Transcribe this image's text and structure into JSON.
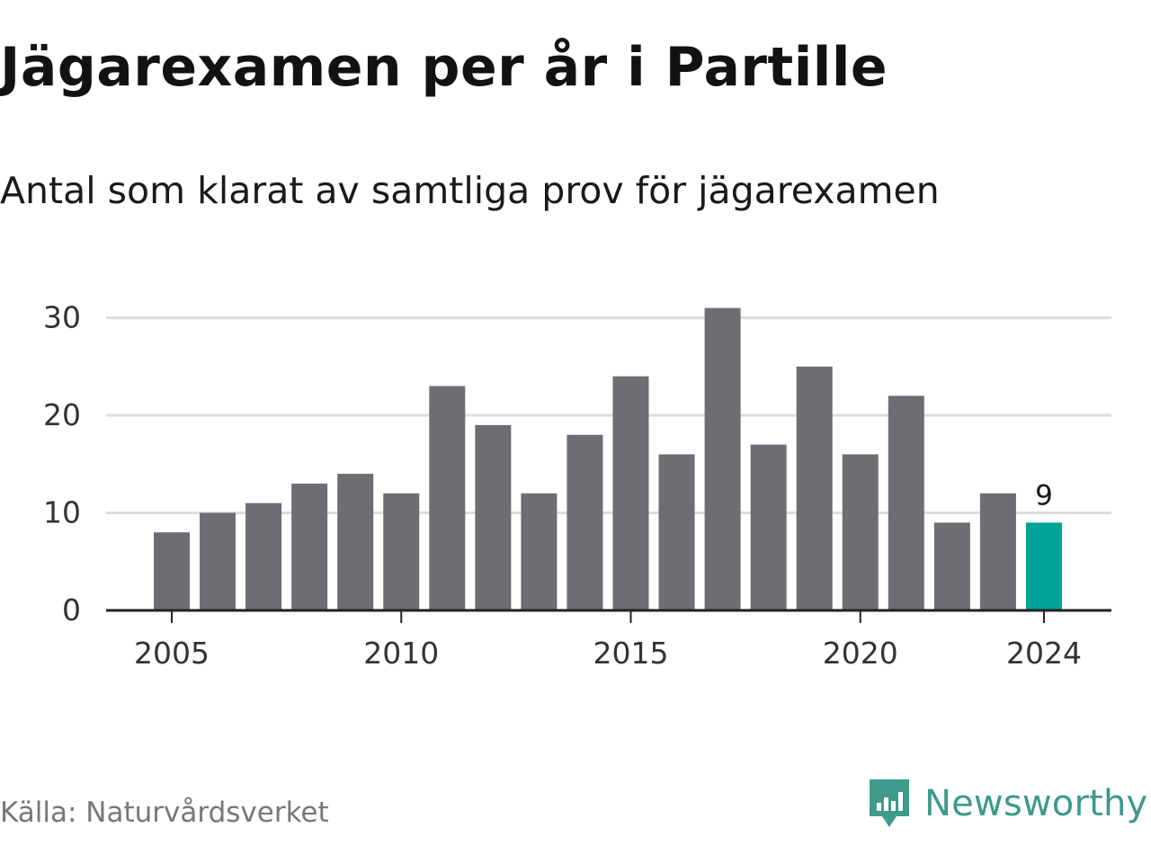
{
  "title": "Jägarexamen per år i Partille",
  "subtitle": "Antal som klarat av samtliga prov för jägarexamen",
  "source": "Källa: Naturvårdsverket",
  "brand": {
    "name": "Newsworthy",
    "icon": "newsworthy-logo-icon",
    "color": "#3d9a8c"
  },
  "chart_data": {
    "type": "bar",
    "categories": [
      2005,
      2006,
      2007,
      2008,
      2009,
      2010,
      2011,
      2012,
      2013,
      2014,
      2015,
      2016,
      2017,
      2018,
      2019,
      2020,
      2021,
      2022,
      2023,
      2024
    ],
    "values": [
      8,
      10,
      11,
      13,
      14,
      12,
      23,
      19,
      12,
      18,
      24,
      16,
      31,
      17,
      25,
      16,
      22,
      9,
      12,
      9
    ],
    "x_tick_labels": [
      "2005",
      "2010",
      "2015",
      "2020",
      "2024"
    ],
    "y_ticks": [
      0,
      10,
      20,
      30
    ],
    "ylim": [
      0,
      32
    ],
    "grid": true,
    "bar_color": "#6e6d73",
    "highlight": {
      "category": 2024,
      "color": "#00a396",
      "label": "9"
    },
    "xlabel": "",
    "ylabel": ""
  }
}
